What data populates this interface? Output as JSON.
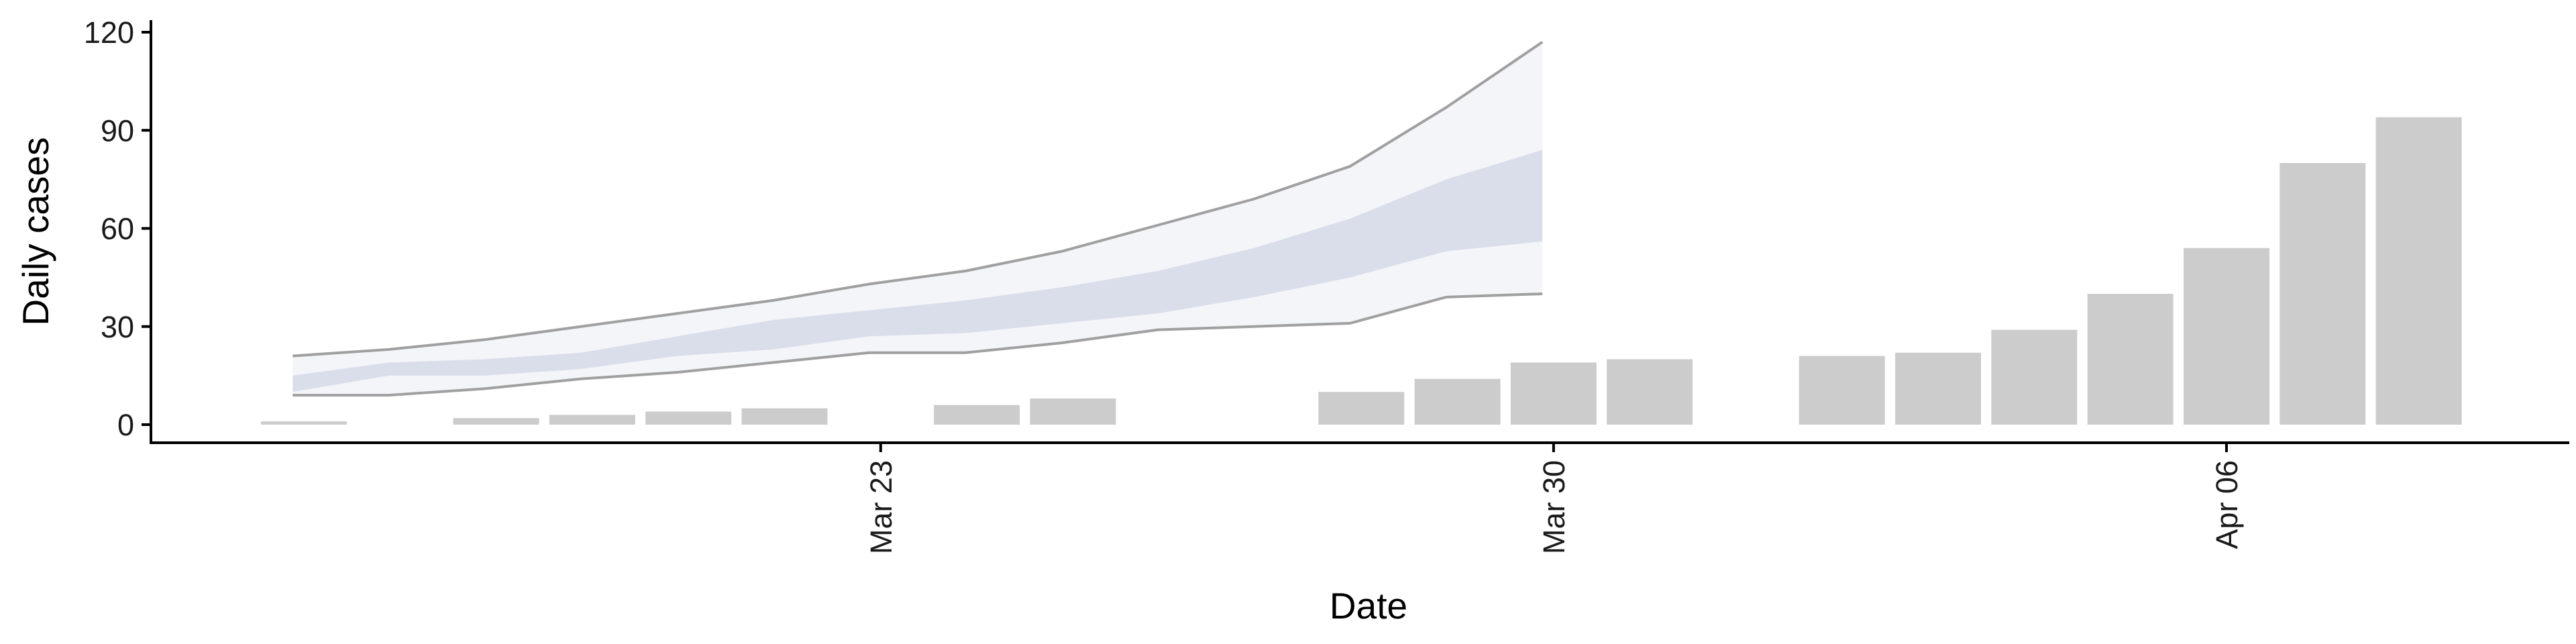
{
  "chart_data": {
    "type": "bar",
    "xlabel": "Date",
    "ylabel": "Daily cases",
    "ylim": [
      0,
      120
    ],
    "y_ticks": [
      0,
      30,
      60,
      90,
      120
    ],
    "y_tick_labels": [
      "0",
      "30",
      "60",
      "90",
      "120"
    ],
    "x_ticks": [
      {
        "date": "2020-03-23",
        "label": "Mar 23"
      },
      {
        "date": "2020-03-30",
        "label": "Mar 30"
      },
      {
        "date": "2020-04-06",
        "label": "Apr 06"
      }
    ],
    "x_domain": [
      "2020-03-16",
      "2020-04-13"
    ],
    "x_tick_label_rotation": "vertical",
    "grid": false,
    "legend": "none",
    "bar_color": "#cccccc",
    "bars": [
      {
        "date": "2020-03-17",
        "value": 1
      },
      {
        "date": "2020-03-19",
        "value": 2
      },
      {
        "date": "2020-03-20",
        "value": 3
      },
      {
        "date": "2020-03-21",
        "value": 4
      },
      {
        "date": "2020-03-22",
        "value": 5
      },
      {
        "date": "2020-03-24",
        "value": 6
      },
      {
        "date": "2020-03-25",
        "value": 8
      },
      {
        "date": "2020-03-28",
        "value": 10
      },
      {
        "date": "2020-03-29",
        "value": 14
      },
      {
        "date": "2020-03-30",
        "value": 19
      },
      {
        "date": "2020-03-31",
        "value": 20
      },
      {
        "date": "2020-04-02",
        "value": 21
      },
      {
        "date": "2020-04-03",
        "value": 22
      },
      {
        "date": "2020-04-04",
        "value": 29
      },
      {
        "date": "2020-04-05",
        "value": 40
      },
      {
        "date": "2020-04-06",
        "value": 54
      },
      {
        "date": "2020-04-07",
        "value": 80
      },
      {
        "date": "2020-04-08",
        "value": 94
      }
    ],
    "forecast_band": {
      "outer_color": "#e9ecf3",
      "inner_color": "#c9cfe2",
      "outer_line_color": "#8a8a8a",
      "points": [
        {
          "date": "2020-03-18",
          "lo90": 9,
          "lo50": 10,
          "hi50": 15,
          "hi90": 21
        },
        {
          "date": "2020-03-19",
          "lo90": 9,
          "lo50": 15,
          "hi50": 19,
          "hi90": 23
        },
        {
          "date": "2020-03-20",
          "lo90": 11,
          "lo50": 15,
          "hi50": 20,
          "hi90": 26
        },
        {
          "date": "2020-03-21",
          "lo90": 14,
          "lo50": 17,
          "hi50": 22,
          "hi90": 30
        },
        {
          "date": "2020-03-22",
          "lo90": 16,
          "lo50": 21,
          "hi50": 27,
          "hi90": 34
        },
        {
          "date": "2020-03-23",
          "lo90": 19,
          "lo50": 23,
          "hi50": 32,
          "hi90": 38
        },
        {
          "date": "2020-03-24",
          "lo90": 22,
          "lo50": 27,
          "hi50": 35,
          "hi90": 43
        },
        {
          "date": "2020-03-25",
          "lo90": 22,
          "lo50": 28,
          "hi50": 38,
          "hi90": 47
        },
        {
          "date": "2020-03-26",
          "lo90": 25,
          "lo50": 31,
          "hi50": 42,
          "hi90": 53
        },
        {
          "date": "2020-03-27",
          "lo90": 29,
          "lo50": 34,
          "hi50": 47,
          "hi90": 61
        },
        {
          "date": "2020-03-28",
          "lo90": 30,
          "lo50": 39,
          "hi50": 54,
          "hi90": 69
        },
        {
          "date": "2020-03-29",
          "lo90": 31,
          "lo50": 45,
          "hi50": 63,
          "hi90": 79
        },
        {
          "date": "2020-03-30",
          "lo90": 39,
          "lo50": 53,
          "hi50": 75,
          "hi90": 97
        },
        {
          "date": "2020-03-31",
          "lo90": 40,
          "lo50": 56,
          "hi50": 84,
          "hi90": 117
        }
      ]
    }
  }
}
